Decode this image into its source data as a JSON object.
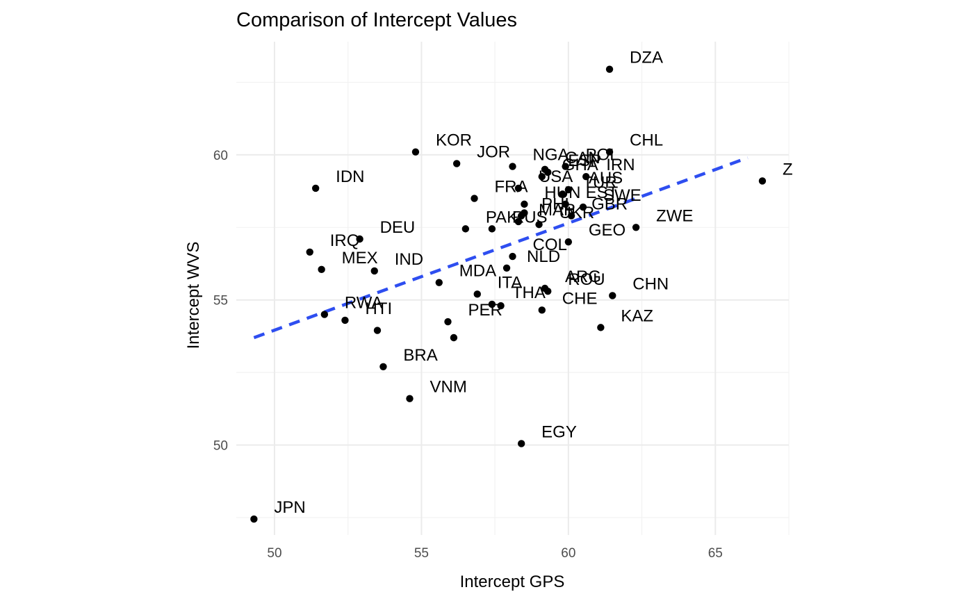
{
  "chart_data": {
    "type": "scatter",
    "title": "Comparison of Intercept Values",
    "xlabel": "Intercept GPS",
    "ylabel": "Intercept WVS",
    "xlim": [
      48.7,
      67.5
    ],
    "ylim": [
      46.9,
      63.9
    ],
    "x_ticks": [
      50,
      55,
      60,
      65
    ],
    "y_ticks": [
      50,
      55,
      60
    ],
    "grid": true,
    "colors": {
      "points": "#000000",
      "trend": "#2e4ef0",
      "grid": "#ebebeb"
    },
    "trend_line": {
      "style": "dashed",
      "from": [
        49.3,
        53.7
      ],
      "to": [
        66.1,
        59.9
      ]
    },
    "points": [
      {
        "label": "DZA",
        "x": 61.4,
        "y": 62.95
      },
      {
        "label": "CHL",
        "x": 61.4,
        "y": 60.1
      },
      {
        "label": "KOR",
        "x": 54.8,
        "y": 60.1
      },
      {
        "label": "JOR",
        "x": 56.2,
        "y": 59.7
      },
      {
        "label": "NGA",
        "x": 58.1,
        "y": 59.6
      },
      {
        "label": "CAN",
        "x": 59.2,
        "y": 59.5
      },
      {
        "label": "POL",
        "x": 59.9,
        "y": 59.6
      },
      {
        "label": "ESP",
        "x": 59.3,
        "y": 59.4
      },
      {
        "label": "IRN",
        "x": 60.6,
        "y": 59.25
      },
      {
        "label": "GHA",
        "x": 59.1,
        "y": 59.25
      },
      {
        "label": "AUS",
        "x": 60.0,
        "y": 58.8
      },
      {
        "label": "IDN",
        "x": 51.4,
        "y": 58.85
      },
      {
        "label": "USA",
        "x": 58.3,
        "y": 58.85
      },
      {
        "label": "Z",
        "x": 66.6,
        "y": 59.1
      },
      {
        "label": "TUR",
        "x": 59.8,
        "y": 58.65
      },
      {
        "label": "HUN",
        "x": 58.5,
        "y": 58.3
      },
      {
        "label": "EST",
        "x": 59.9,
        "y": 58.3
      },
      {
        "label": "SWE",
        "x": 60.5,
        "y": 58.2
      },
      {
        "label": "PHL",
        "x": 58.4,
        "y": 57.9
      },
      {
        "label": "GBR",
        "x": 60.1,
        "y": 57.9
      },
      {
        "label": "MAR",
        "x": 58.3,
        "y": 57.7
      },
      {
        "label": "FRA",
        "x": 56.8,
        "y": 58.5
      },
      {
        "label": "ZWE",
        "x": 62.3,
        "y": 57.5
      },
      {
        "label": "UKR",
        "x": 59.0,
        "y": 57.6
      },
      {
        "label": "PAK",
        "x": 56.5,
        "y": 57.45
      },
      {
        "label": "DEU",
        "x": 52.9,
        "y": 57.1
      },
      {
        "label": "IRQ",
        "x": 51.2,
        "y": 56.65
      },
      {
        "label": "IND",
        "x": 53.4,
        "y": 56.0
      },
      {
        "label": "RUS",
        "x": 57.4,
        "y": 57.45
      },
      {
        "label": "COL",
        "x": 58.1,
        "y": 56.5
      },
      {
        "label": "MDA",
        "x": 55.6,
        "y": 55.6
      },
      {
        "label": "NLD",
        "x": 57.9,
        "y": 56.1
      },
      {
        "label": "GEO",
        "x": 60.0,
        "y": 57.0
      },
      {
        "label": "ROU",
        "x": 59.3,
        "y": 55.3
      },
      {
        "label": "ARG",
        "x": 59.2,
        "y": 55.4
      },
      {
        "label": "ITA",
        "x": 56.9,
        "y": 55.2
      },
      {
        "label": "CHN",
        "x": 61.5,
        "y": 55.15
      },
      {
        "label": "CHE",
        "x": 59.1,
        "y": 54.65
      },
      {
        "label": "THA",
        "x": 57.4,
        "y": 54.85
      },
      {
        "label": "MEX",
        "x": 51.6,
        "y": 56.05
      },
      {
        "label": "RWA",
        "x": 51.7,
        "y": 54.5
      },
      {
        "label": "HTI",
        "x": 52.4,
        "y": 54.3
      },
      {
        "label": "PER",
        "x": 55.9,
        "y": 54.25
      },
      {
        "label": "KAZ",
        "x": 61.1,
        "y": 54.05
      },
      {
        "label": "BRA",
        "x": 53.7,
        "y": 52.7
      },
      {
        "label": "VNM",
        "x": 54.6,
        "y": 51.6
      },
      {
        "label": "EGY",
        "x": 58.4,
        "y": 50.05
      },
      {
        "label": "JPN",
        "x": 49.3,
        "y": 47.45
      }
    ],
    "extra_points": [
      {
        "x": 53.5,
        "y": 53.95
      },
      {
        "x": 56.1,
        "y": 53.7
      },
      {
        "x": 57.7,
        "y": 54.8
      },
      {
        "x": 58.5,
        "y": 58.0
      }
    ]
  }
}
